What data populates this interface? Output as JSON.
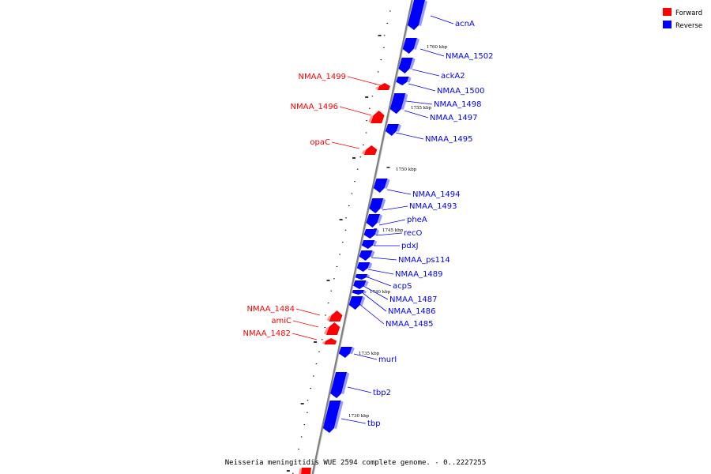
{
  "caption": "Neisseria meningitidis WUE 2594 complete genome. - 0..2227255",
  "legend": [
    {
      "label": "Forward",
      "color": "#ff0000"
    },
    {
      "label": "Reverse",
      "color": "#0000ff"
    }
  ],
  "colors": {
    "forward": "#ff0000",
    "reverse": "#0000ff",
    "forward_shade": "#ff9a9a",
    "reverse_shade": "#9a9aff",
    "backbone": "#888888"
  },
  "tick_labels": [
    "1760 kbp",
    "1755 kbp",
    "1750 kbp",
    "1745 kbp",
    "1740 kbp",
    "1735 kbp",
    "1730 kbp"
  ],
  "genes": [
    {
      "name": "acnA",
      "strand": "reverse"
    },
    {
      "name": "NMAA_1502",
      "strand": "reverse"
    },
    {
      "name": "ackA2",
      "strand": "reverse"
    },
    {
      "name": "NMAA_1500",
      "strand": "reverse"
    },
    {
      "name": "NMAA_1499",
      "strand": "forward"
    },
    {
      "name": "NMAA_1498",
      "strand": "reverse"
    },
    {
      "name": "NMAA_1496",
      "strand": "forward"
    },
    {
      "name": "NMAA_1497",
      "strand": "reverse"
    },
    {
      "name": "NMAA_1495",
      "strand": "reverse"
    },
    {
      "name": "opaC",
      "strand": "forward"
    },
    {
      "name": "NMAA_1494",
      "strand": "reverse"
    },
    {
      "name": "NMAA_1493",
      "strand": "reverse"
    },
    {
      "name": "pheA",
      "strand": "reverse"
    },
    {
      "name": "recO",
      "strand": "reverse"
    },
    {
      "name": "pdxJ",
      "strand": "reverse"
    },
    {
      "name": "NMAA_ps114",
      "strand": "reverse"
    },
    {
      "name": "NMAA_1489",
      "strand": "reverse"
    },
    {
      "name": "acpS",
      "strand": "reverse"
    },
    {
      "name": "NMAA_1487",
      "strand": "reverse"
    },
    {
      "name": "NMAA_1486",
      "strand": "reverse"
    },
    {
      "name": "NMAA_1485",
      "strand": "reverse"
    },
    {
      "name": "NMAA_1484",
      "strand": "forward"
    },
    {
      "name": "amiC",
      "strand": "forward"
    },
    {
      "name": "NMAA_1482",
      "strand": "forward"
    },
    {
      "name": "murI",
      "strand": "reverse"
    },
    {
      "name": "tbp2",
      "strand": "reverse"
    },
    {
      "name": "tbp",
      "strand": "reverse"
    }
  ]
}
